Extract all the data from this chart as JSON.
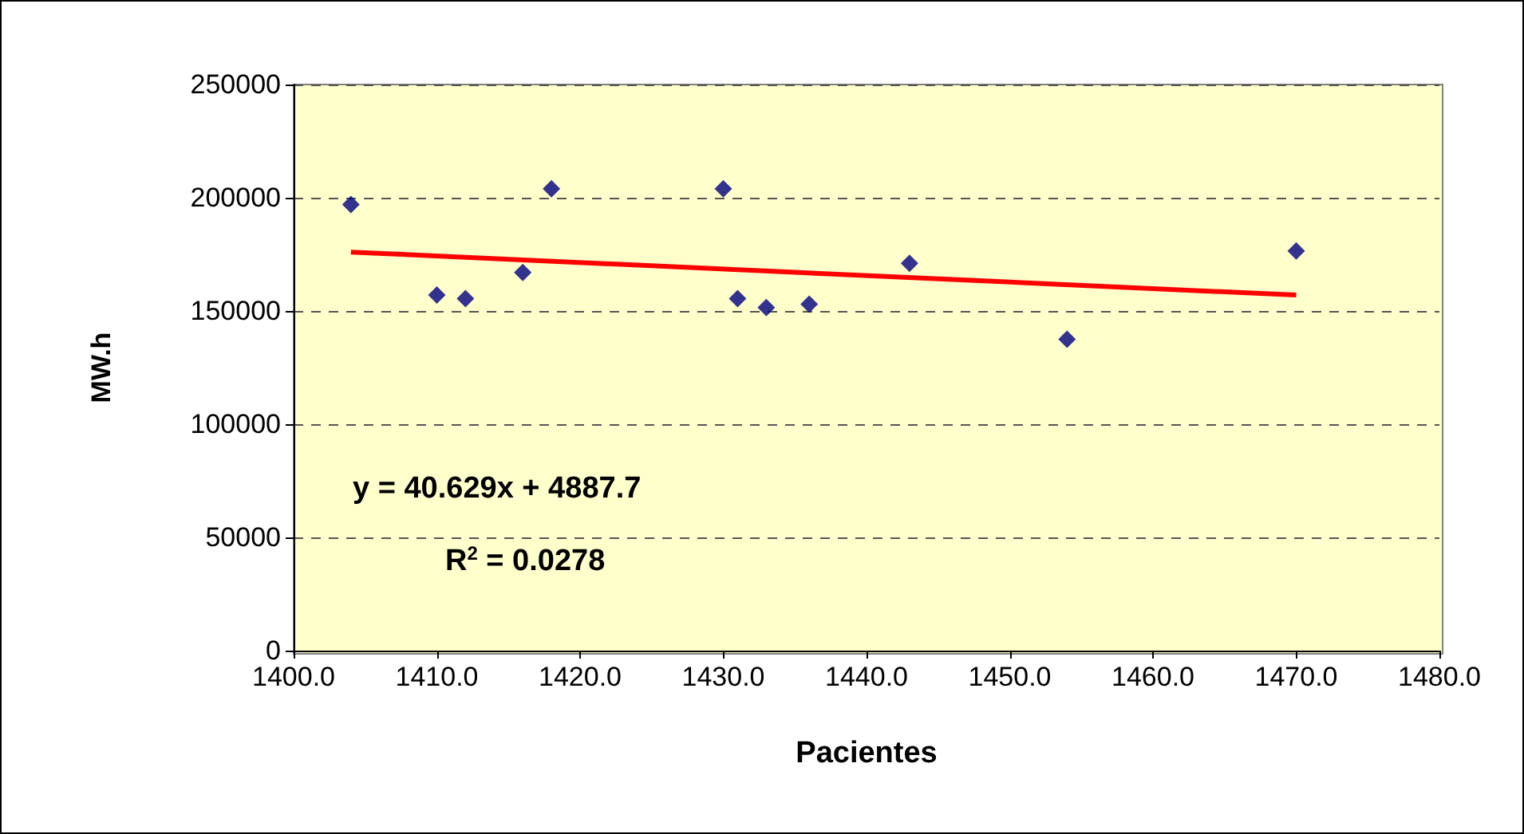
{
  "chart_data": {
    "type": "scatter",
    "xlabel": "Pacientes",
    "ylabel": "MW.h",
    "xlim": [
      1400,
      1480
    ],
    "xticks": [
      {
        "value": 1400,
        "label": "1400.0"
      },
      {
        "value": 1410,
        "label": "1410.0"
      },
      {
        "value": 1420,
        "label": "1420.0"
      },
      {
        "value": 1430,
        "label": "1430.0"
      },
      {
        "value": 1440,
        "label": "1440.0"
      },
      {
        "value": 1450,
        "label": "1450.0"
      },
      {
        "value": 1460,
        "label": "1460.0"
      },
      {
        "value": 1470,
        "label": "1470.0"
      },
      {
        "value": 1480,
        "label": "1480.0"
      }
    ],
    "ylim": [
      0,
      250000
    ],
    "yticks": [
      0,
      50000,
      100000,
      150000,
      200000,
      250000
    ],
    "grid": "y",
    "series": [
      {
        "marker": "diamond",
        "color": "#000080",
        "x": [
          1404,
          1410,
          1412,
          1416,
          1418,
          1430,
          1431,
          1433,
          1436,
          1443,
          1454,
          1470
        ],
        "values": [
          197000,
          157000,
          155500,
          167000,
          204000,
          204000,
          155500,
          151500,
          153000,
          171000,
          137500,
          176500
        ]
      },
      {
        "type": "line",
        "color": "#ff0000",
        "x": [
          1404,
          1470
        ],
        "values": [
          176000,
          157000
        ]
      }
    ],
    "annotations": [
      "y = 40.629x + 4887.7",
      "R$^{2}$ = 0.0278"
    ]
  }
}
